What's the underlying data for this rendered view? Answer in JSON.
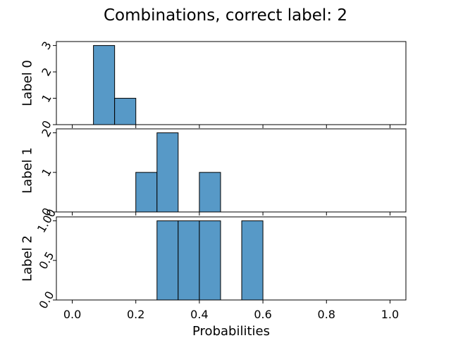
{
  "chart_data": {
    "type": "bar",
    "title": "Combinations, correct label: 2",
    "xlabel": "Probabilities",
    "xlim": [
      -0.05,
      1.05
    ],
    "bin_width": 0.0667,
    "x_ticks": [
      "0.0",
      "0.2",
      "0.4",
      "0.6",
      "0.8",
      "1.0"
    ],
    "x_tick_values": [
      0.0,
      0.2,
      0.4,
      0.6,
      0.8,
      1.0
    ],
    "panels": [
      {
        "ylabel": "Label 0",
        "ylim": [
          0,
          3.15
        ],
        "y_ticks": [
          "0",
          "1",
          "2",
          "3"
        ],
        "y_tick_values": [
          0,
          1,
          2,
          3
        ],
        "bins": [
          {
            "x0": 0.0667,
            "x1": 0.1333,
            "count": 3
          },
          {
            "x0": 0.1333,
            "x1": 0.2,
            "count": 1
          }
        ]
      },
      {
        "ylabel": "Label 1",
        "ylim": [
          0,
          2.1
        ],
        "y_ticks": [
          "0",
          "1",
          "2"
        ],
        "y_tick_values": [
          0,
          1,
          2
        ],
        "bins": [
          {
            "x0": 0.2,
            "x1": 0.2667,
            "count": 1
          },
          {
            "x0": 0.2667,
            "x1": 0.3333,
            "count": 2
          },
          {
            "x0": 0.4,
            "x1": 0.4667,
            "count": 1
          }
        ]
      },
      {
        "ylabel": "Label 2",
        "ylim": [
          0,
          1.05
        ],
        "y_ticks": [
          "0.0",
          "0.5",
          "1.00"
        ],
        "y_tick_values": [
          0,
          0.5,
          1.0
        ],
        "bins": [
          {
            "x0": 0.2667,
            "x1": 0.3333,
            "count": 1
          },
          {
            "x0": 0.3333,
            "x1": 0.4,
            "count": 1
          },
          {
            "x0": 0.4,
            "x1": 0.4667,
            "count": 1
          },
          {
            "x0": 0.5333,
            "x1": 0.6,
            "count": 1
          }
        ]
      }
    ],
    "colors": {
      "bar_fill": "#5799c7",
      "bar_edge": "#000000"
    },
    "grid": false,
    "legend": "none"
  }
}
